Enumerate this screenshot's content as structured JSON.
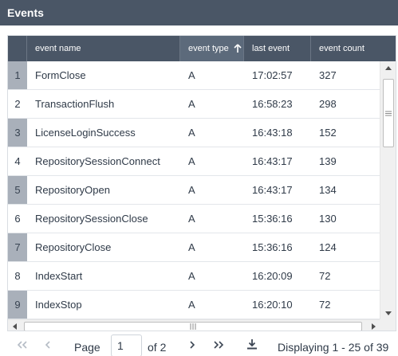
{
  "panel": {
    "title": "Events"
  },
  "columns": {
    "name": "event name",
    "type": "event type",
    "last": "last event",
    "count": "event count"
  },
  "rows": [
    {
      "num": "1",
      "name": "FormClose",
      "type": "A",
      "last": "17:02:57",
      "count": "327"
    },
    {
      "num": "2",
      "name": "TransactionFlush",
      "type": "A",
      "last": "16:58:23",
      "count": "298"
    },
    {
      "num": "3",
      "name": "LicenseLoginSuccess",
      "type": "A",
      "last": "16:43:18",
      "count": "152"
    },
    {
      "num": "4",
      "name": "RepositorySessionConnect",
      "type": "A",
      "last": "16:43:17",
      "count": "139"
    },
    {
      "num": "5",
      "name": "RepositoryOpen",
      "type": "A",
      "last": "16:43:17",
      "count": "134"
    },
    {
      "num": "6",
      "name": "RepositorySessionClose",
      "type": "A",
      "last": "15:36:16",
      "count": "130"
    },
    {
      "num": "7",
      "name": "RepositoryClose",
      "type": "A",
      "last": "15:36:16",
      "count": "124"
    },
    {
      "num": "8",
      "name": "IndexStart",
      "type": "A",
      "last": "16:20:09",
      "count": "72"
    },
    {
      "num": "9",
      "name": "IndexStop",
      "type": "A",
      "last": "16:20:10",
      "count": "72"
    }
  ],
  "pager": {
    "page_label": "Page",
    "page_value": "1",
    "of_label": "of 2",
    "display": "Displaying 1 - 25 of 39"
  },
  "icons": {
    "sort": "arrow-up-icon",
    "first": "double-chevron-left-icon",
    "prev": "chevron-left-icon",
    "next": "chevron-right-icon",
    "last": "double-chevron-right-icon",
    "export": "download-icon"
  },
  "colors": {
    "header_bg": "#4a5666",
    "sorted_header_bg": "#5c6a7b",
    "row_number_alt_bg": "#a9b0ba"
  }
}
